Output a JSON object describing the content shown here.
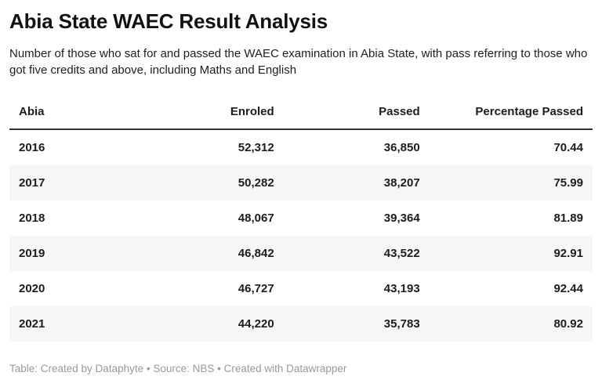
{
  "header": {
    "title": "Abia State WAEC Result Analysis",
    "subtitle": "Number of those who sat for and passed the WAEC examination in Abia State, with pass referring to those who got five credits and above, including Maths and English"
  },
  "chart_data": {
    "type": "table",
    "title": "Abia State WAEC Result Analysis",
    "columns": [
      "Abia",
      "Enroled",
      "Passed",
      "Percentage Passed"
    ],
    "rows": [
      [
        "2016",
        "52,312",
        "36,850",
        "70.44"
      ],
      [
        "2017",
        "50,282",
        "38,207",
        "75.99"
      ],
      [
        "2018",
        "48,067",
        "39,364",
        "81.89"
      ],
      [
        "2019",
        "46,842",
        "43,522",
        "92.91"
      ],
      [
        "2020",
        "46,727",
        "43,193",
        "92.44"
      ],
      [
        "2021",
        "44,220",
        "35,783",
        "80.92"
      ]
    ],
    "numeric": {
      "years": [
        2016,
        2017,
        2018,
        2019,
        2020,
        2021
      ],
      "enroled": [
        52312,
        50282,
        48067,
        46842,
        46727,
        44220
      ],
      "passed": [
        36850,
        38207,
        39364,
        43522,
        43193,
        35783
      ],
      "percentage_passed": [
        70.44,
        75.99,
        81.89,
        92.91,
        92.44,
        80.92
      ]
    },
    "layout": {
      "striped_rows": true,
      "header_rule": true
    }
  },
  "footer": {
    "text": "Table: Created by Dataphyte • Source: NBS • Created with Datawrapper"
  },
  "colors": {
    "body_text": "#1d1d1d",
    "title_text": "#121212",
    "row_stripe": "#f6f6f6",
    "header_rule": "#333333",
    "footer_text": "#999999",
    "background": "#ffffff"
  }
}
